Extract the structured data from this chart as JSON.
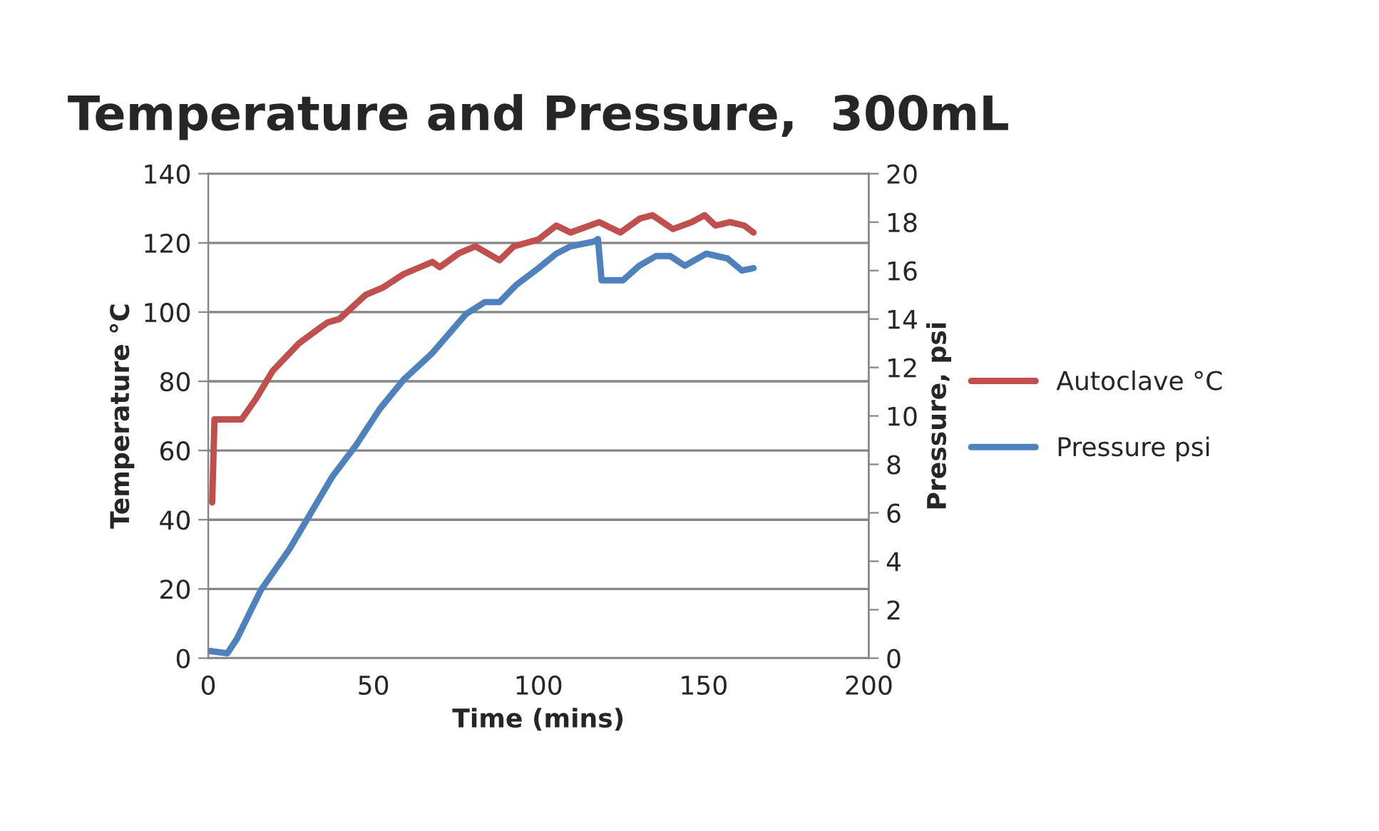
{
  "chart_data": {
    "type": "line",
    "title": "Temperature and Pressure,  300mL",
    "xlabel": "Time (mins)",
    "ylabel": "Temperature °C",
    "y2label": "Pressure, psi",
    "xlim": [
      0,
      200
    ],
    "xticks": [
      0,
      50,
      100,
      150,
      200
    ],
    "ylim": [
      0,
      140
    ],
    "yticks": [
      0,
      20,
      40,
      60,
      80,
      100,
      120,
      140
    ],
    "y2lim": [
      0,
      20
    ],
    "y2ticks": [
      0,
      2,
      4,
      6,
      8,
      10,
      12,
      14,
      16,
      18,
      20
    ],
    "grid": "y",
    "legend": "right",
    "marker": "none",
    "line_style": "solid",
    "series": [
      {
        "name": "Autoclave °C",
        "color": "#c0504d",
        "x": [
          1.2,
          1.9,
          4.3,
          10.1,
          14.5,
          19.5,
          27.5,
          33.2,
          36.1,
          39.7,
          47.7,
          52.7,
          59.2,
          67.9,
          70.1,
          75.9,
          80.9,
          88.2,
          92.5,
          100,
          105.4,
          109.7,
          118.4,
          124.8,
          130.6,
          134.5,
          140.7,
          146.4,
          150.3,
          153.6,
          158,
          162.3,
          165.1
        ],
        "values": [
          45,
          69,
          69,
          69,
          75,
          83,
          91,
          95,
          97,
          98,
          105,
          107,
          111,
          114.5,
          113,
          117,
          119,
          115,
          119,
          121,
          125,
          123,
          126,
          123,
          127,
          128,
          124,
          126,
          128,
          125,
          126,
          125,
          123
        ]
      },
      {
        "name": "Pressure psi",
        "color": "#4f81bd",
        "axis": "y2",
        "x": [
          0,
          5.8,
          8.7,
          15.9,
          24.6,
          37.6,
          44.8,
          52,
          59.2,
          67.9,
          78,
          83.8,
          88.2,
          93.2,
          100,
          105.4,
          109.7,
          116.9,
          118,
          119.1,
          125.6,
          130.5,
          135.6,
          139.9,
          144.3,
          150.8,
          157.2,
          161.6,
          165.1
        ],
        "values": [
          0.3,
          0.2,
          0.8,
          2.8,
          4.5,
          7.5,
          8.8,
          10.3,
          11.5,
          12.6,
          14.2,
          14.7,
          14.7,
          15.4,
          16.1,
          16.7,
          17,
          17.2,
          17.3,
          15.6,
          15.6,
          16.2,
          16.6,
          16.6,
          16.2,
          16.7,
          16.5,
          16,
          16.1
        ]
      }
    ]
  }
}
